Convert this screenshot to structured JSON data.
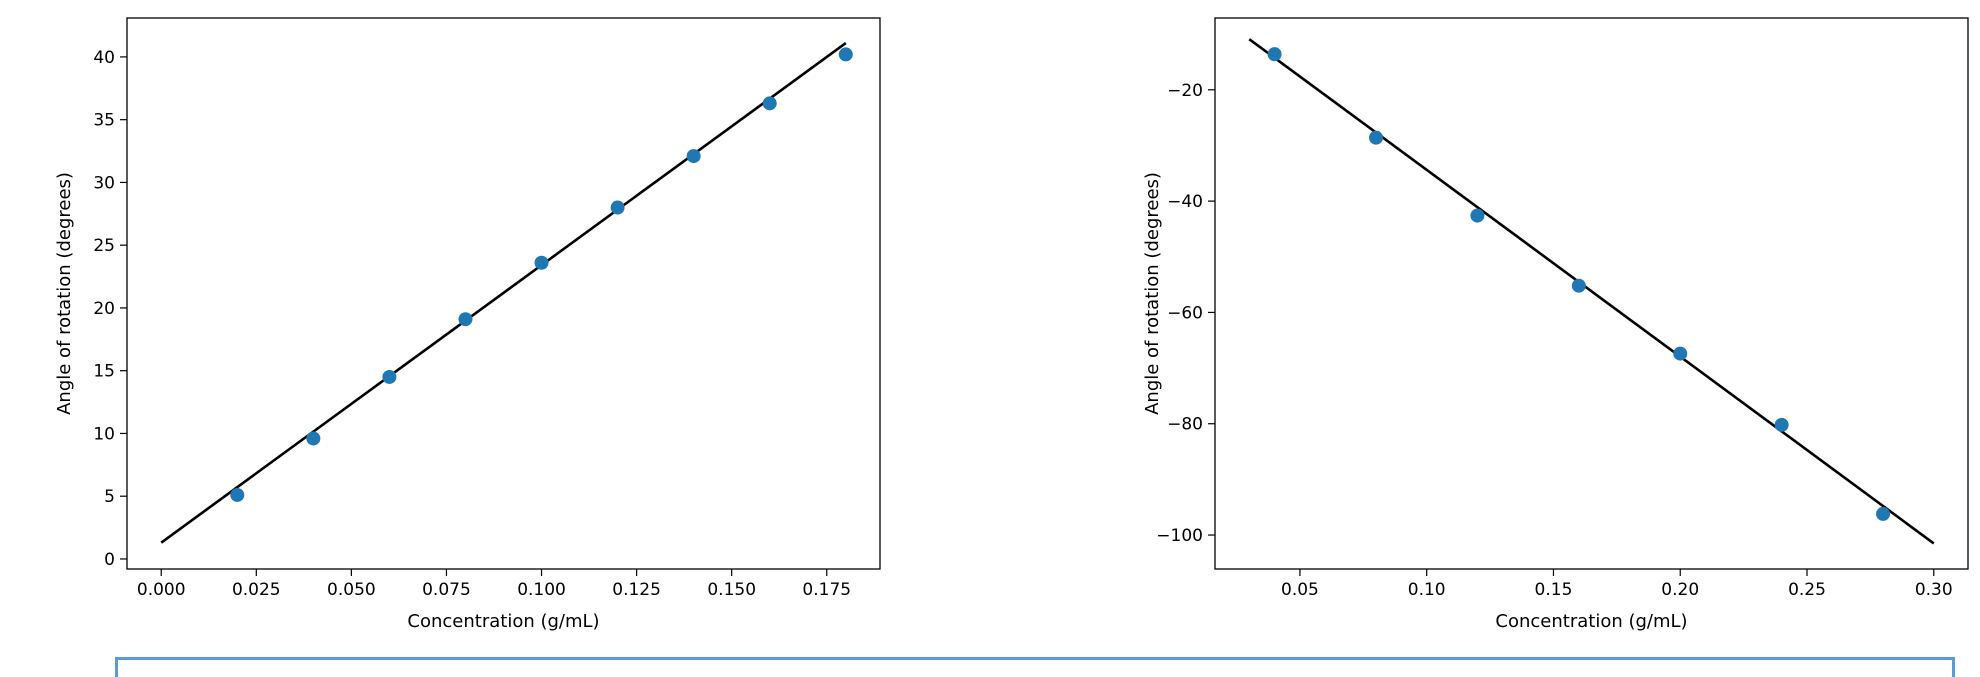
{
  "chart_data": [
    {
      "type": "scatter",
      "title": "",
      "xlabel": "Concentration (g/mL)",
      "ylabel": "Angle of rotation (degrees)",
      "xlim": [
        -0.009,
        0.189
      ],
      "ylim": [
        -0.8,
        43.1
      ],
      "xticks": [
        0.0,
        0.025,
        0.05,
        0.075,
        0.1,
        0.125,
        0.15,
        0.175
      ],
      "xtick_labels": [
        "0.000",
        "0.025",
        "0.050",
        "0.075",
        "0.100",
        "0.125",
        "0.150",
        "0.175"
      ],
      "yticks": [
        0,
        5,
        10,
        15,
        20,
        25,
        30,
        35,
        40
      ],
      "ytick_labels": [
        "0",
        "5",
        "10",
        "15",
        "20",
        "25",
        "30",
        "35",
        "40"
      ],
      "grid": false,
      "series": [
        {
          "kind": "points",
          "color": "#1f77b4",
          "x": [
            0.02,
            0.04,
            0.06,
            0.08,
            0.1,
            0.12,
            0.14,
            0.16,
            0.18
          ],
          "y": [
            5.1,
            9.6,
            14.5,
            19.1,
            23.6,
            28.0,
            32.1,
            36.3,
            40.2
          ]
        },
        {
          "kind": "fit_line",
          "color": "#000000",
          "x": [
            0.0,
            0.18
          ],
          "y": [
            1.3,
            41.1
          ]
        }
      ]
    },
    {
      "type": "scatter",
      "title": "",
      "xlabel": "Concentration (g/mL)",
      "ylabel": "Angle of rotation (degrees)",
      "xlim": [
        0.0165,
        0.3135
      ],
      "ylim": [
        -106.1,
        -7.1
      ],
      "xticks": [
        0.05,
        0.1,
        0.15,
        0.2,
        0.25,
        0.3
      ],
      "xtick_labels": [
        "0.05",
        "0.10",
        "0.15",
        "0.20",
        "0.25",
        "0.30"
      ],
      "yticks": [
        -20,
        -40,
        -60,
        -80,
        -100
      ],
      "ytick_labels": [
        "−20",
        "−40",
        "−60",
        "−80",
        "−100"
      ],
      "grid": false,
      "series": [
        {
          "kind": "points",
          "color": "#1f77b4",
          "x": [
            0.04,
            0.08,
            0.12,
            0.16,
            0.2,
            0.24,
            0.28
          ],
          "y": [
            -13.6,
            -28.6,
            -42.6,
            -55.2,
            -67.4,
            -80.2,
            -96.2
          ]
        },
        {
          "kind": "fit_line",
          "color": "#000000",
          "x": [
            0.03,
            0.3
          ],
          "y": [
            -10.9,
            -101.5
          ]
        }
      ]
    }
  ]
}
